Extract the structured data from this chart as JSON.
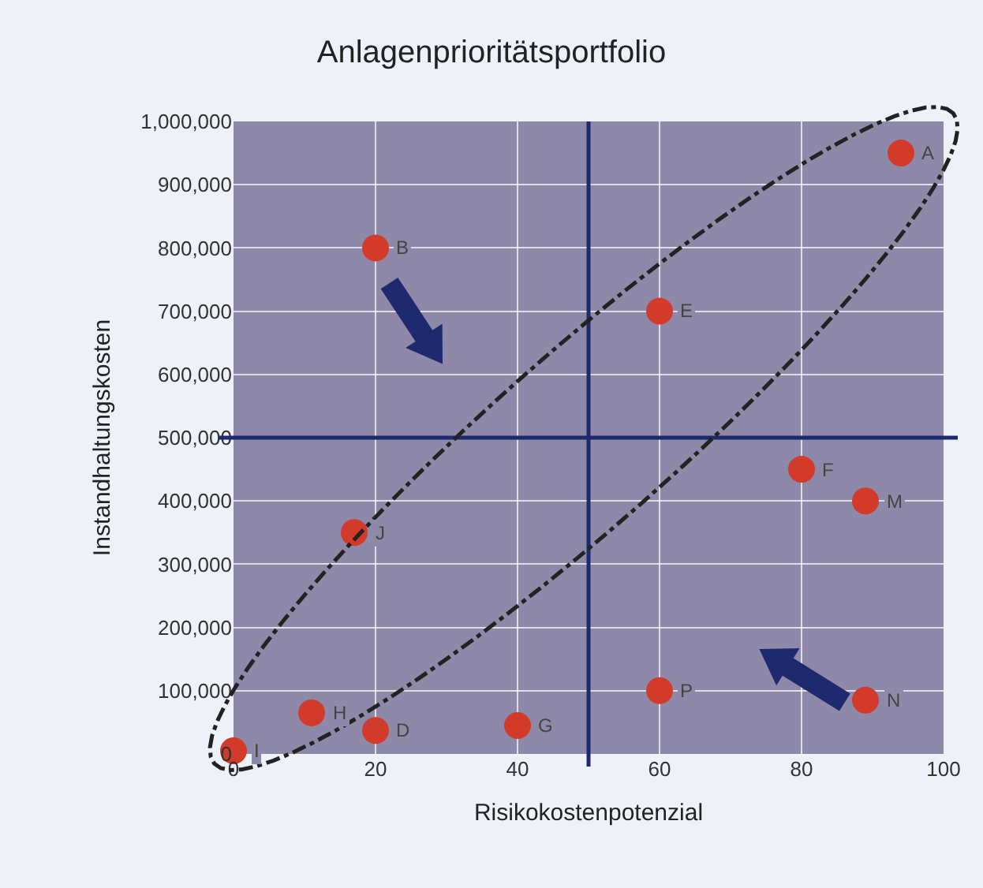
{
  "chart_data": {
    "type": "scatter",
    "title": "Anlagenprioritätsportfolio",
    "xlabel": "Risikokostenpotenzial",
    "ylabel": "Instandhaltungskosten",
    "x": [
      94,
      20,
      60,
      80,
      89,
      17,
      60,
      89,
      11,
      20,
      40,
      0
    ],
    "series": [
      {
        "color": "#d23a2a",
        "values": [
          950000,
          800000,
          700000,
          450000,
          400000,
          350000,
          100000,
          85000,
          65000,
          37000,
          45000,
          5000
        ]
      }
    ],
    "xlim": [
      0,
      100
    ],
    "xticks": [
      0,
      20,
      40,
      60,
      80,
      100
    ],
    "ylim": [
      0,
      1000000
    ],
    "yticks": [
      {
        "value": 0,
        "label": "0"
      },
      {
        "value": 100000,
        "label": "100,000"
      },
      {
        "value": 200000,
        "label": "200,000"
      },
      {
        "value": 300000,
        "label": "300,000"
      },
      {
        "value": 400000,
        "label": "400,000"
      },
      {
        "value": 500000,
        "label": "500,000"
      },
      {
        "value": 600000,
        "label": "600,000"
      },
      {
        "value": 700000,
        "label": "700,000"
      },
      {
        "value": 800000,
        "label": "800,000"
      },
      {
        "value": 900000,
        "label": "900,000"
      },
      {
        "value": 1000000,
        "label": "1,000,000"
      }
    ],
    "ref_lines": [
      {
        "axis": "x",
        "value": 50,
        "color": "#1f2a6e"
      },
      {
        "axis": "y",
        "value": 500000,
        "color": "#1f2a6e"
      }
    ],
    "annotations": [
      {
        "text": "A",
        "x": 94,
        "y": 950000
      },
      {
        "text": "B",
        "x": 20,
        "y": 800000
      },
      {
        "text": "E",
        "x": 60,
        "y": 700000
      },
      {
        "text": "F",
        "x": 80,
        "y": 450000
      },
      {
        "text": "M",
        "x": 89,
        "y": 400000
      },
      {
        "text": "J",
        "x": 17,
        "y": 350000
      },
      {
        "text": "P",
        "x": 60,
        "y": 100000
      },
      {
        "text": "N",
        "x": 89,
        "y": 85000
      },
      {
        "text": "H",
        "x": 11,
        "y": 65000
      },
      {
        "text": "D",
        "x": 20,
        "y": 37000
      },
      {
        "text": "G",
        "x": 40,
        "y": 45000
      },
      {
        "text": "I",
        "x": 0,
        "y": 5000
      }
    ],
    "grid": true,
    "marker": "circle"
  }
}
